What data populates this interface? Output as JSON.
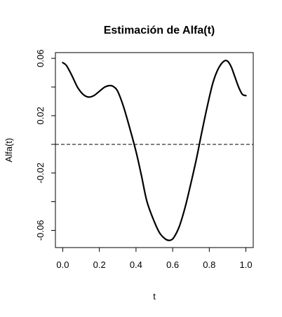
{
  "chart_data": {
    "type": "line",
    "title": "Estimación de Alfa(t)",
    "xlabel": "t",
    "ylabel": "Alfa(t)",
    "xlim": [
      -0.04,
      1.04
    ],
    "ylim": [
      -0.072,
      0.064
    ],
    "x_ticks": [
      0.0,
      0.2,
      0.4,
      0.6,
      0.8,
      1.0
    ],
    "x_tick_labels": [
      "0.0",
      "0.2",
      "0.4",
      "0.6",
      "0.8",
      "1.0"
    ],
    "y_ticks": [
      -0.06,
      -0.04,
      -0.02,
      0.0,
      0.02,
      0.04,
      0.06
    ],
    "y_tick_labels": [
      "-0.06",
      "",
      "-0.02",
      "",
      "0.02",
      "",
      "0.06"
    ],
    "grid": false,
    "reference_line": {
      "y": 0,
      "style": "dashed"
    },
    "series": [
      {
        "color": "#000000",
        "x": [
          0.0,
          0.02,
          0.05,
          0.08,
          0.11,
          0.14,
          0.17,
          0.2,
          0.23,
          0.26,
          0.28,
          0.3,
          0.33,
          0.36,
          0.4,
          0.43,
          0.46,
          0.5,
          0.53,
          0.56,
          0.58,
          0.6,
          0.62,
          0.64,
          0.67,
          0.7,
          0.73,
          0.76,
          0.79,
          0.82,
          0.85,
          0.88,
          0.9,
          0.92,
          0.94,
          0.96,
          0.98,
          1.0
        ],
        "y": [
          0.057,
          0.055,
          0.048,
          0.04,
          0.035,
          0.033,
          0.034,
          0.037,
          0.04,
          0.041,
          0.04,
          0.037,
          0.027,
          0.014,
          -0.005,
          -0.022,
          -0.04,
          -0.054,
          -0.062,
          -0.066,
          -0.067,
          -0.066,
          -0.062,
          -0.056,
          -0.043,
          -0.027,
          -0.01,
          0.009,
          0.027,
          0.043,
          0.053,
          0.058,
          0.058,
          0.054,
          0.047,
          0.04,
          0.035,
          0.034
        ]
      }
    ]
  }
}
